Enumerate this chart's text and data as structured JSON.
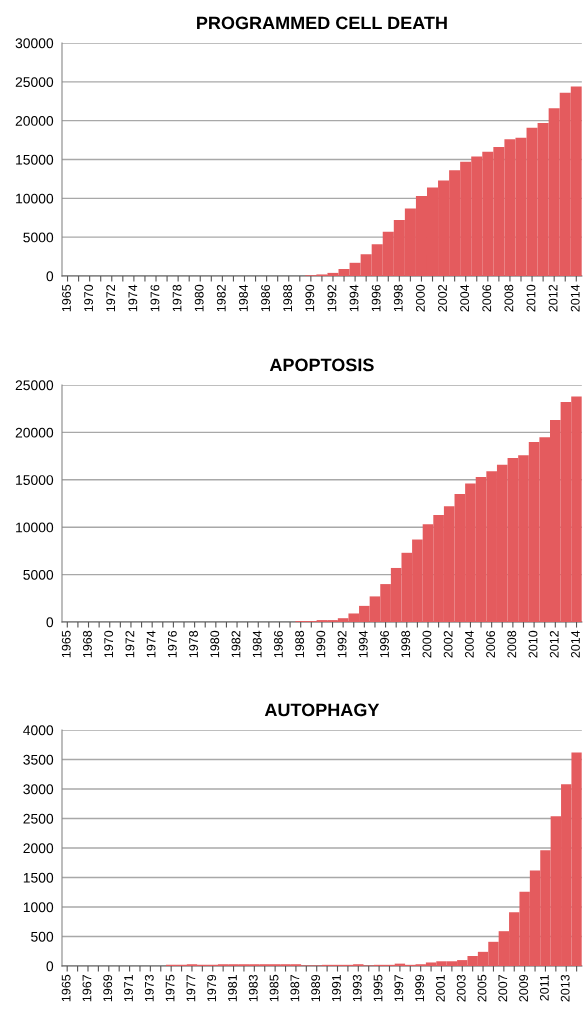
{
  "chart_data": [
    {
      "type": "bar",
      "title": "PROGRAMMED CELL DEATH",
      "color": "#e45b5e",
      "grid": "y",
      "ylim": [
        0,
        30000
      ],
      "yticks": [
        0,
        5000,
        10000,
        15000,
        20000,
        25000,
        30000
      ],
      "categories": [
        "1965",
        null,
        "1970",
        null,
        "1972",
        null,
        "1974",
        null,
        "1976",
        null,
        "1978",
        null,
        "1980",
        null,
        "1982",
        null,
        "1984",
        null,
        "1986",
        null,
        "1988",
        null,
        "1990",
        null,
        "1992",
        null,
        "1994",
        null,
        "1996",
        null,
        "1998",
        null,
        "2000",
        null,
        "2002",
        null,
        "2004",
        null,
        "2006",
        null,
        "2008",
        null,
        "2010",
        null,
        "2012",
        null,
        "2014"
      ],
      "values": [
        0,
        0,
        0,
        0,
        0,
        0,
        0,
        0,
        0,
        0,
        0,
        0,
        0,
        0,
        0,
        0,
        0,
        0,
        0,
        0,
        0,
        0,
        100,
        200,
        400,
        900,
        1700,
        2800,
        4100,
        5700,
        7200,
        8700,
        10300,
        11400,
        12300,
        13600,
        14700,
        15400,
        16000,
        16600,
        17600,
        17800,
        19100,
        19700,
        21600,
        23600,
        24400
      ]
    },
    {
      "type": "bar",
      "title": "APOPTOSIS",
      "color": "#e45b5e",
      "grid": "y",
      "ylim": [
        0,
        25000
      ],
      "yticks": [
        0,
        5000,
        10000,
        15000,
        20000,
        25000
      ],
      "categories": [
        "1965",
        null,
        "1968",
        null,
        "1970",
        null,
        "1972",
        null,
        "1974",
        null,
        "1976",
        null,
        "1978",
        null,
        "1980",
        null,
        "1982",
        null,
        "1984",
        null,
        "1986",
        null,
        "1988",
        null,
        "1990",
        null,
        "1992",
        null,
        "1994",
        null,
        "1996",
        null,
        "1998",
        null,
        "2000",
        null,
        "2002",
        null,
        "2004",
        null,
        "2006",
        null,
        "2008",
        null,
        "2010",
        null,
        "2012",
        null,
        "2014"
      ],
      "values": [
        0,
        0,
        0,
        0,
        0,
        0,
        0,
        0,
        0,
        0,
        0,
        0,
        0,
        0,
        0,
        0,
        0,
        0,
        0,
        0,
        0,
        0,
        100,
        100,
        200,
        200,
        400,
        900,
        1700,
        2700,
        4000,
        5700,
        7300,
        8700,
        10300,
        11300,
        12200,
        13500,
        14600,
        15300,
        15900,
        16600,
        17300,
        17600,
        19000,
        19500,
        21300,
        23200,
        23800
      ]
    },
    {
      "type": "bar",
      "title": "AUTOPHAGY",
      "color": "#e45b5e",
      "grid": "y",
      "ylim": [
        0,
        4000
      ],
      "yticks": [
        0,
        500,
        1000,
        1500,
        2000,
        2500,
        3000,
        3500,
        4000
      ],
      "categories": [
        "1965",
        null,
        "1967",
        null,
        "1969",
        null,
        "1971",
        null,
        "1973",
        null,
        "1975",
        null,
        "1977",
        null,
        "1979",
        null,
        "1981",
        null,
        "1983",
        null,
        "1985",
        null,
        "1987",
        null,
        "1989",
        null,
        "1991",
        null,
        "1993",
        null,
        "1995",
        null,
        "1997",
        null,
        "1999",
        null,
        "2001",
        null,
        "2003",
        null,
        "2005",
        null,
        "2007",
        null,
        "2009",
        null,
        "2011",
        null,
        "2013",
        null
      ],
      "values": [
        0,
        0,
        0,
        0,
        0,
        0,
        0,
        0,
        0,
        0,
        20,
        20,
        30,
        20,
        20,
        30,
        30,
        30,
        30,
        30,
        30,
        30,
        30,
        10,
        10,
        20,
        20,
        20,
        30,
        10,
        20,
        20,
        40,
        20,
        30,
        60,
        80,
        80,
        100,
        170,
        240,
        410,
        590,
        910,
        1260,
        1620,
        1960,
        2540,
        3080,
        3620
      ]
    }
  ]
}
